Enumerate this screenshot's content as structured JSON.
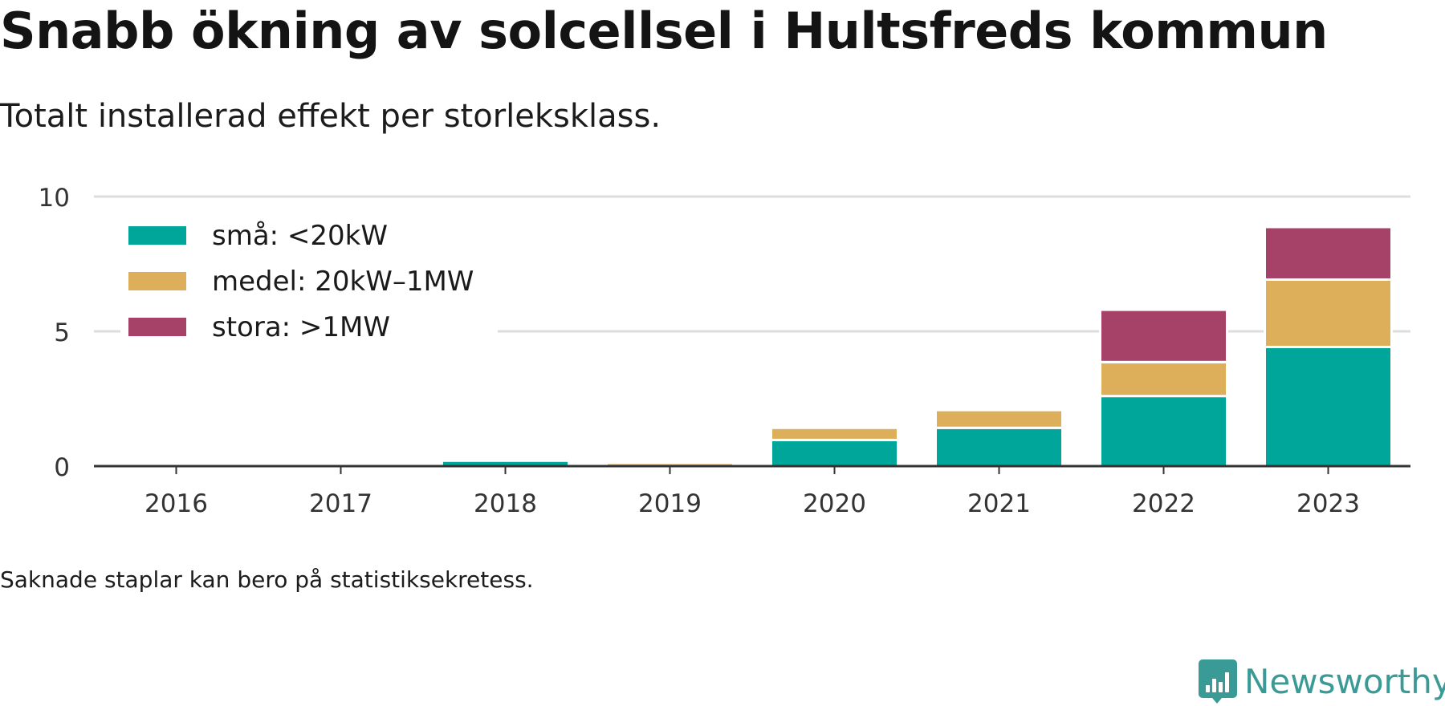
{
  "header": {
    "title": "Snabb ökning av solcellsel i Hultsfreds kommun",
    "subtitle": "Totalt installerad effekt per storleksklass."
  },
  "footer": {
    "note": "Saknade staplar kan bero på statistiksekretess.",
    "brand": "Newsworthy"
  },
  "chart_data": {
    "type": "bar",
    "stacked": true,
    "categories": [
      "2016",
      "2017",
      "2018",
      "2019",
      "2020",
      "2021",
      "2022",
      "2023"
    ],
    "series": [
      {
        "name": "små: <20kW",
        "color": "#00a69a",
        "values": [
          0,
          0,
          0.2,
          0,
          0.97,
          1.42,
          2.6,
          4.42
        ]
      },
      {
        "name": "medel: 20kW–1MW",
        "color": "#deaf5b",
        "values": [
          0,
          0,
          0,
          0.12,
          0.45,
          0.66,
          1.26,
          2.5
        ]
      },
      {
        "name": "stora: >1MW",
        "color": "#a64267",
        "values": [
          0,
          0,
          0,
          0,
          0,
          0,
          1.94,
          1.95
        ]
      }
    ],
    "ylim": [
      0,
      10
    ],
    "yticks": [
      0,
      5,
      10
    ],
    "grid": true,
    "legend_position": "top-left"
  }
}
